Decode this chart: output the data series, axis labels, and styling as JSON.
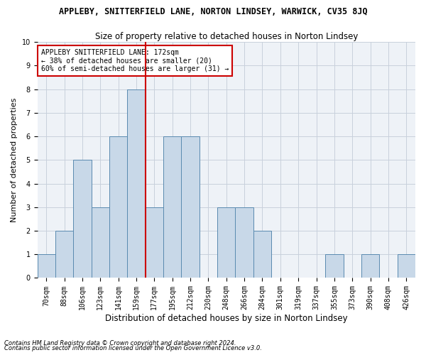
{
  "title": "APPLEBY, SNITTERFIELD LANE, NORTON LINDSEY, WARWICK, CV35 8JQ",
  "subtitle": "Size of property relative to detached houses in Norton Lindsey",
  "xlabel": "Distribution of detached houses by size in Norton Lindsey",
  "ylabel": "Number of detached properties",
  "bins": [
    "70sqm",
    "88sqm",
    "106sqm",
    "123sqm",
    "141sqm",
    "159sqm",
    "177sqm",
    "195sqm",
    "212sqm",
    "230sqm",
    "248sqm",
    "266sqm",
    "284sqm",
    "301sqm",
    "319sqm",
    "337sqm",
    "355sqm",
    "373sqm",
    "390sqm",
    "408sqm",
    "426sqm"
  ],
  "values": [
    1,
    2,
    5,
    3,
    6,
    8,
    3,
    6,
    6,
    0,
    3,
    3,
    2,
    0,
    0,
    0,
    1,
    0,
    1,
    0,
    1
  ],
  "bar_color": "#c8d8e8",
  "bar_edge_color": "#5a8ab0",
  "vline_color": "#cc0000",
  "annotation_text": "APPLEBY SNITTERFIELD LANE: 172sqm\n← 38% of detached houses are smaller (20)\n60% of semi-detached houses are larger (31) →",
  "annotation_box_color": "white",
  "annotation_box_edge_color": "#cc0000",
  "ylim": [
    0,
    10
  ],
  "yticks": [
    0,
    1,
    2,
    3,
    4,
    5,
    6,
    7,
    8,
    9,
    10
  ],
  "footnote1": "Contains HM Land Registry data © Crown copyright and database right 2024.",
  "footnote2": "Contains public sector information licensed under the Open Government Licence v3.0.",
  "bg_color": "#eef2f7",
  "grid_color": "#c8d0dc",
  "title_fontsize": 8.5,
  "subtitle_fontsize": 8.5,
  "ylabel_fontsize": 8,
  "xlabel_fontsize": 8.5,
  "tick_fontsize": 7,
  "annot_fontsize": 7,
  "footnote_fontsize": 6
}
